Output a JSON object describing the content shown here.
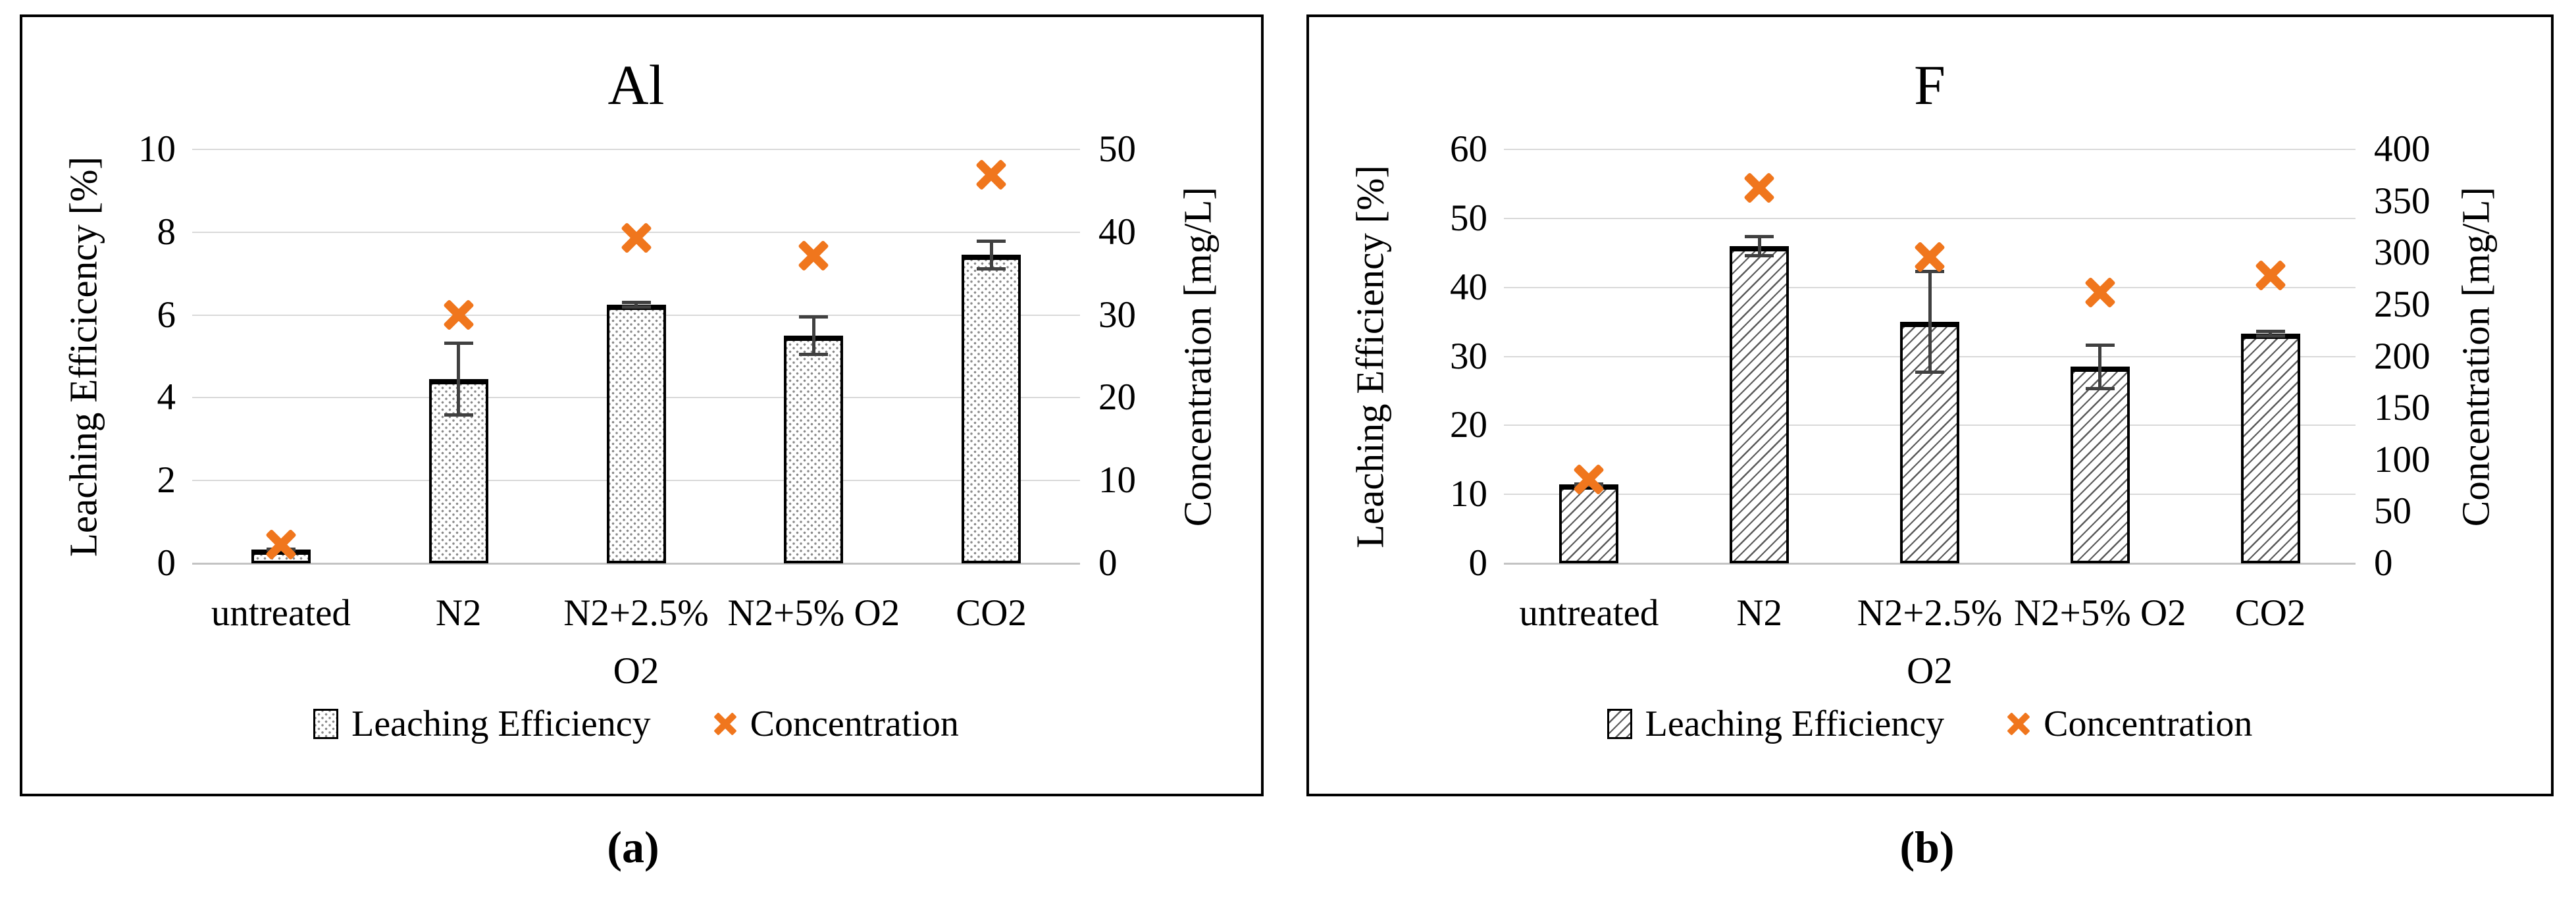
{
  "figure": {
    "caption_a": "(a)",
    "caption_b": "(b)"
  },
  "colors": {
    "marker_orange": "#F0761D",
    "bar_fill": "#FFFFFF",
    "bar_border": "#000000",
    "error_bar": "#404040",
    "gridline": "#D9D9D9",
    "frame_border": "#000000"
  },
  "chart_data": [
    {
      "panel": "a",
      "type": "bar",
      "title": "Al",
      "categories": [
        "untreated",
        "N2",
        "N2+2.5% O2",
        "N2+5% O2",
        "CO2"
      ],
      "series": [
        {
          "name": "Leaching Efficiency",
          "plot": "bar",
          "axis": "left",
          "pattern": "dots",
          "values": [
            0.33,
            4.45,
            6.25,
            5.5,
            7.45
          ],
          "error": [
            0.05,
            0.9,
            0.1,
            0.5,
            0.37
          ]
        },
        {
          "name": "Concentration",
          "plot": "scatter-x",
          "axis": "right",
          "values": [
            2.3,
            30,
            39.3,
            37.2,
            46.9
          ]
        }
      ],
      "left_axis": {
        "label": "Leaching Efficicency [%]",
        "min": 0,
        "max": 10,
        "step": 2,
        "ticks": [
          "10",
          "8",
          "6",
          "4",
          "2",
          "0"
        ]
      },
      "right_axis": {
        "label": "Concentration [mg/L]",
        "min": 0,
        "max": 50,
        "step": 10,
        "ticks": [
          "50",
          "40",
          "30",
          "20",
          "10",
          "0"
        ]
      },
      "legend": [
        "Leaching Efficiency",
        "Concentration"
      ],
      "grid": "horizontal"
    },
    {
      "panel": "b",
      "type": "bar",
      "title": "F",
      "categories": [
        "untreated",
        "N2",
        "N2+2.5% O2",
        "N2+5% O2",
        "CO2"
      ],
      "series": [
        {
          "name": "Leaching Efficiency",
          "plot": "bar",
          "axis": "left",
          "pattern": "diagonal",
          "values": [
            11.4,
            46,
            35,
            28.5,
            33.3
          ],
          "error": [
            0.3,
            1.6,
            7.5,
            3.4,
            0.6
          ]
        },
        {
          "name": "Concentration",
          "plot": "scatter-x",
          "axis": "right",
          "values": [
            81,
            363,
            296,
            262,
            278
          ]
        }
      ],
      "left_axis": {
        "label": "Leaching Efficiency [%]",
        "min": 0,
        "max": 60,
        "step": 10,
        "ticks": [
          "60",
          "50",
          "40",
          "30",
          "20",
          "10",
          "0"
        ]
      },
      "right_axis": {
        "label": "Concentration [mg/L]",
        "min": 0,
        "max": 400,
        "step": 50,
        "ticks": [
          "400",
          "350",
          "300",
          "250",
          "200",
          "150",
          "100",
          "50",
          "0"
        ]
      },
      "legend": [
        "Leaching Efficiency",
        "Concentration"
      ],
      "grid": "horizontal"
    }
  ]
}
